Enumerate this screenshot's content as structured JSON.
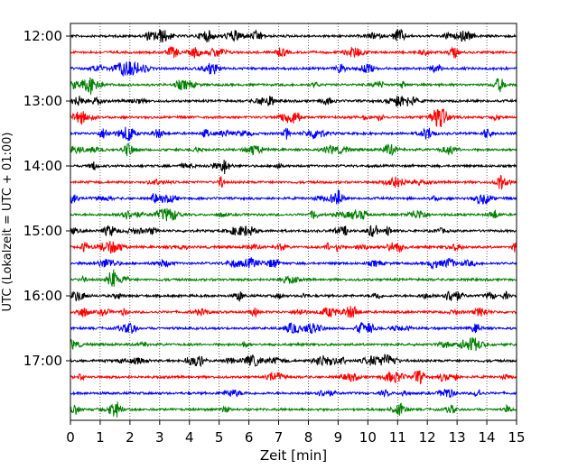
{
  "chart_data": {
    "type": "line",
    "title": "",
    "xlabel": "Zeit  [min]",
    "ylabel": "UTC (Lokalzeit = UTC + 01:00)",
    "xlim": [
      0,
      15
    ],
    "x_ticks": [
      "0",
      "1",
      "2",
      "3",
      "4",
      "5",
      "6",
      "7",
      "8",
      "9",
      "10",
      "11",
      "12",
      "13",
      "14",
      "15"
    ],
    "y_tick_labels": [
      "12:00",
      "13:00",
      "14:00",
      "15:00",
      "16:00",
      "17:00"
    ],
    "trace_start_times": [
      "12:00",
      "12:15",
      "12:30",
      "12:45",
      "13:00",
      "13:15",
      "13:30",
      "13:45",
      "14:00",
      "14:15",
      "14:30",
      "14:45",
      "15:00",
      "15:15",
      "15:30",
      "15:45",
      "16:00",
      "16:15",
      "16:30",
      "16:45",
      "17:00",
      "17:15",
      "17:30",
      "17:45"
    ],
    "trace_colors": [
      "#000000",
      "#ff0000",
      "#0000ff",
      "#008000"
    ],
    "grid": "vertical dotted at each minute",
    "legend": "none"
  }
}
